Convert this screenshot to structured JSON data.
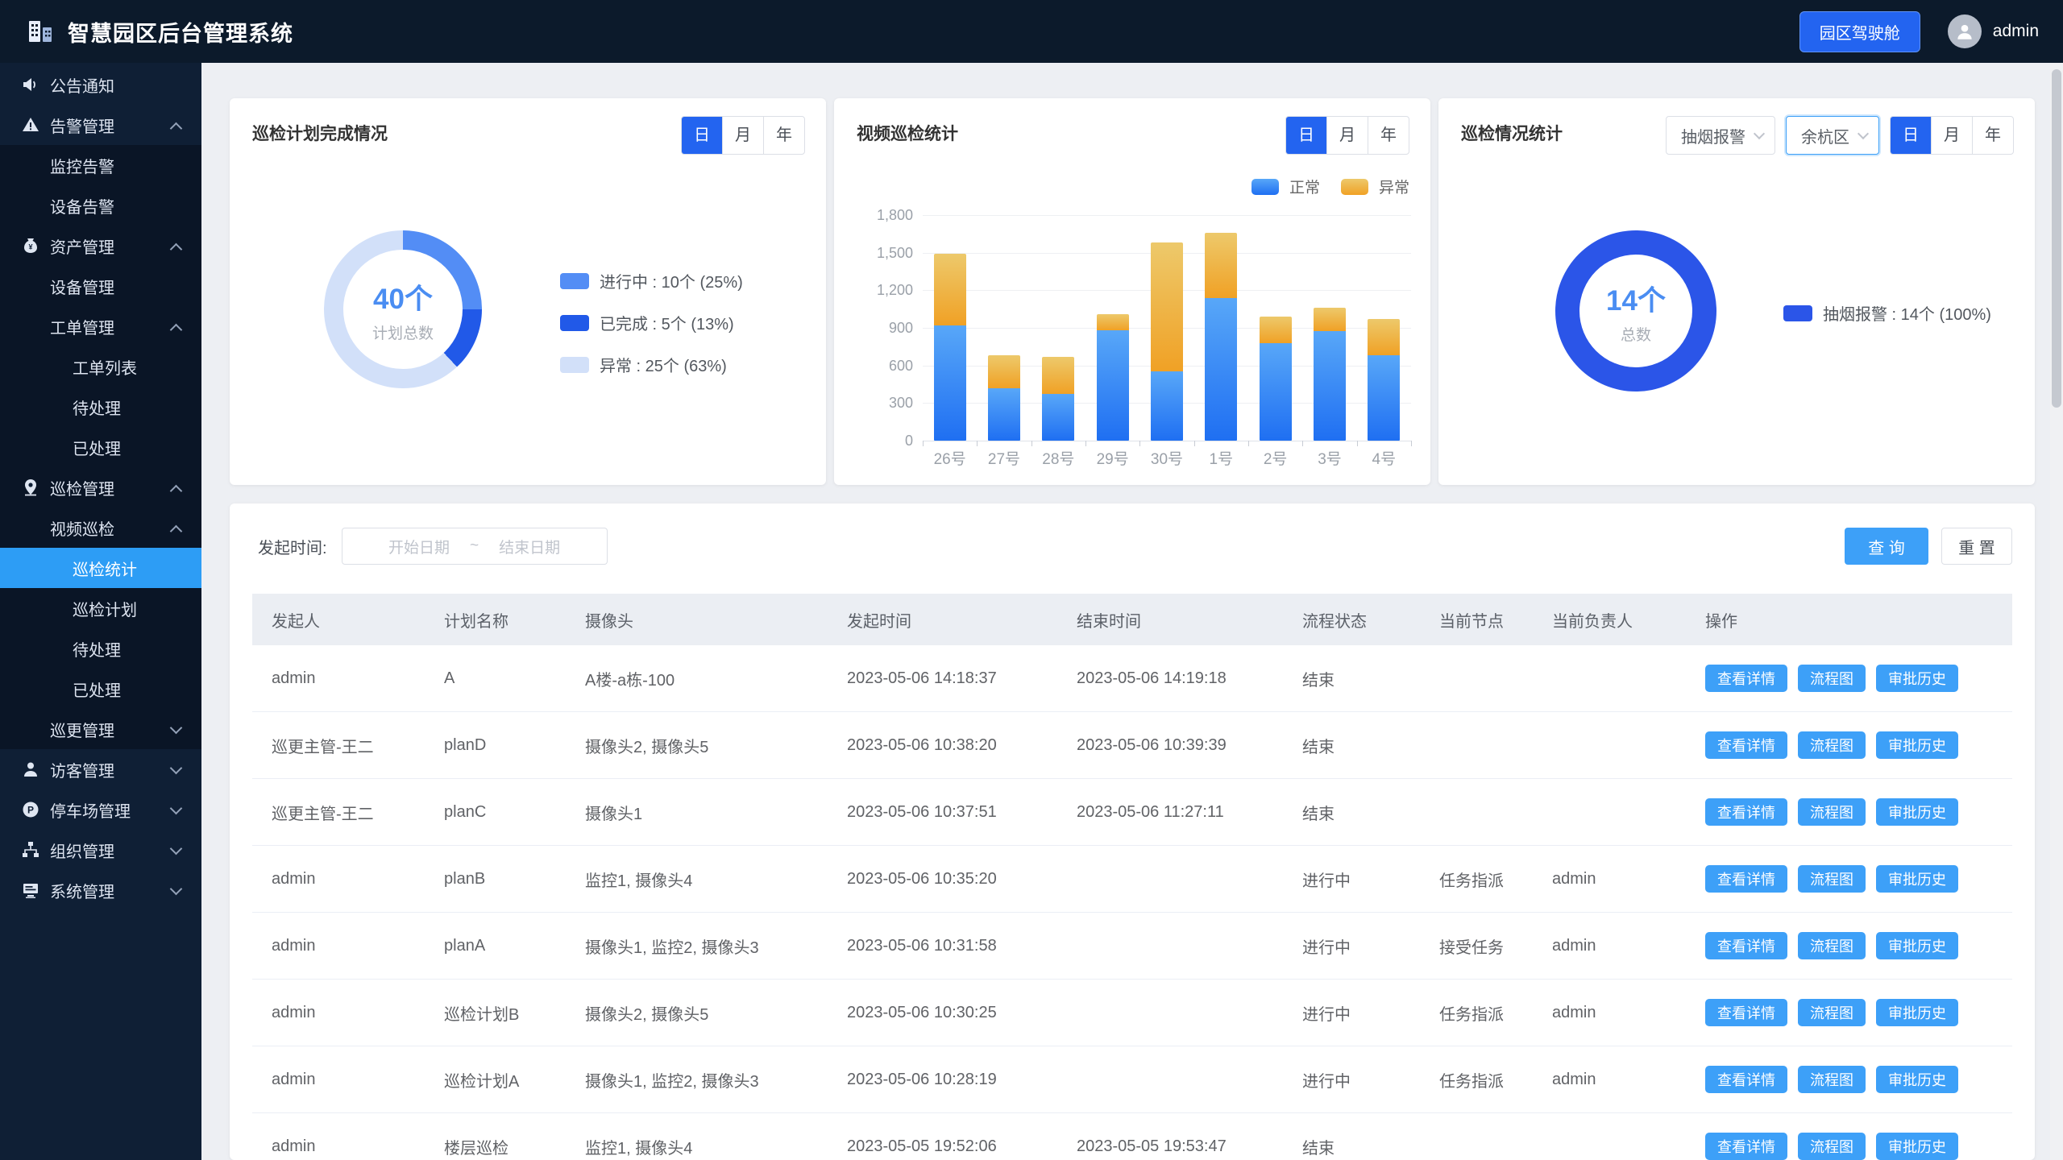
{
  "header": {
    "title": "智慧园区后台管理系统",
    "cockpit_button": "园区驾驶舱",
    "user": "admin"
  },
  "sidebar": {
    "items": [
      {
        "label": "公告通知",
        "icon": "megaphone-icon",
        "level": 1
      },
      {
        "label": "告警管理",
        "icon": "alert-icon",
        "level": 1,
        "arrow": "up"
      },
      {
        "label": "监控告警",
        "level": 2,
        "dark": true
      },
      {
        "label": "设备告警",
        "level": 2,
        "dark": true
      },
      {
        "label": "资产管理",
        "icon": "asset-icon",
        "level": 1,
        "arrow": "up",
        "dark": true
      },
      {
        "label": "设备管理",
        "level": 2,
        "dark": true
      },
      {
        "label": "工单管理",
        "level": 2,
        "arrow": "up",
        "dark": true
      },
      {
        "label": "工单列表",
        "level": 3,
        "dark": true
      },
      {
        "label": "待处理",
        "level": 3,
        "dark": true
      },
      {
        "label": "已处理",
        "level": 3,
        "dark": true
      },
      {
        "label": "巡检管理",
        "icon": "patrol-icon",
        "level": 1,
        "arrow": "up",
        "dark": true
      },
      {
        "label": "视频巡检",
        "level": 2,
        "arrow": "up",
        "dark": true
      },
      {
        "label": "巡检统计",
        "level": 3,
        "selected": true
      },
      {
        "label": "巡检计划",
        "level": 3,
        "dark": true
      },
      {
        "label": "待处理",
        "level": 3,
        "dark": true
      },
      {
        "label": "已处理",
        "level": 3,
        "dark": true
      },
      {
        "label": "巡更管理",
        "level": 2,
        "arrow": "down",
        "dark": true
      },
      {
        "label": "访客管理",
        "icon": "visitor-icon",
        "level": 1,
        "arrow": "down"
      },
      {
        "label": "停车场管理",
        "icon": "parking-icon",
        "level": 1,
        "arrow": "down"
      },
      {
        "label": "组织管理",
        "icon": "org-icon",
        "level": 1,
        "arrow": "down"
      },
      {
        "label": "系统管理",
        "icon": "system-icon",
        "level": 1,
        "arrow": "down"
      }
    ]
  },
  "period": {
    "options": [
      "日",
      "月",
      "年"
    ],
    "selected": "日"
  },
  "cards": {
    "situation": {
      "alarm_type": "抽烟报警",
      "district": "余杭区"
    }
  },
  "chart_data": [
    {
      "type": "pie",
      "title": "巡检计划完成情况",
      "center_value": "40个",
      "center_label": "计划总数",
      "slices": [
        {
          "name": "进行中",
          "label": "进行中 : 10个 (25%)",
          "value": 10,
          "sweep": 25,
          "color": "#538df5"
        },
        {
          "name": "已完成",
          "label": "已完成 : 5个 (13%)",
          "value": 5,
          "sweep": 13,
          "color": "#2159e8"
        },
        {
          "name": "异常",
          "label": "异常 : 25个 (63%)",
          "value": 25,
          "sweep": 62,
          "color": "#d2e0f9"
        }
      ],
      "legend_position": "right"
    },
    {
      "type": "bar",
      "stacked": true,
      "title": "视频巡检统计",
      "categories": [
        "26号",
        "27号",
        "28号",
        "29号",
        "30号",
        "1号",
        "2号",
        "3号",
        "4号"
      ],
      "series": [
        {
          "name": "正常",
          "color": "#1f6ff2",
          "color2": "#58a7f8",
          "values": [
            920,
            420,
            370,
            880,
            550,
            1140,
            780,
            875,
            680
          ]
        },
        {
          "name": "异常",
          "color": "#f0a125",
          "color2": "#edc96b",
          "values": [
            570,
            260,
            300,
            130,
            1030,
            520,
            210,
            185,
            290
          ]
        }
      ],
      "ylim": [
        0,
        1800
      ],
      "yticks": [
        {
          "v": 0,
          "label": "0"
        },
        {
          "v": 300,
          "label": "300"
        },
        {
          "v": 600,
          "label": "600"
        },
        {
          "v": 900,
          "label": "900"
        },
        {
          "v": 1200,
          "label": "1,200"
        },
        {
          "v": 1500,
          "label": "1,500"
        },
        {
          "v": 1800,
          "label": "1,800"
        }
      ],
      "grid": true,
      "legend_position": "top-right"
    },
    {
      "type": "pie",
      "title": "巡检情况统计",
      "center_value": "14个",
      "center_label": "总数",
      "slices": [
        {
          "name": "抽烟报警",
          "label": "抽烟报警 : 14个 (100%)",
          "value": 14,
          "sweep": 100,
          "color": "#2b55e8"
        }
      ],
      "legend_position": "right"
    }
  ],
  "filters": {
    "time_label": "发起时间:",
    "start_placeholder": "开始日期",
    "separator": "~",
    "end_placeholder": "结束日期",
    "search_label": "查 询",
    "reset_label": "重 置"
  },
  "table": {
    "headers": [
      "发起人",
      "计划名称",
      "摄像头",
      "发起时间",
      "结束时间",
      "流程状态",
      "当前节点",
      "当前负责人",
      "操作"
    ],
    "row_actions": [
      "查看详情",
      "流程图",
      "审批历史"
    ],
    "rows": [
      [
        "admin",
        "A",
        "A楼-a栋-100",
        "2023-05-06 14:18:37",
        "2023-05-06 14:19:18",
        "结束",
        "",
        ""
      ],
      [
        "巡更主管-王二",
        "planD",
        "摄像头2, 摄像头5",
        "2023-05-06 10:38:20",
        "2023-05-06 10:39:39",
        "结束",
        "",
        ""
      ],
      [
        "巡更主管-王二",
        "planC",
        "摄像头1",
        "2023-05-06 10:37:51",
        "2023-05-06 11:27:11",
        "结束",
        "",
        ""
      ],
      [
        "admin",
        "planB",
        "监控1, 摄像头4",
        "2023-05-06 10:35:20",
        "",
        "进行中",
        "任务指派",
        "admin"
      ],
      [
        "admin",
        "planA",
        "摄像头1, 监控2, 摄像头3",
        "2023-05-06 10:31:58",
        "",
        "进行中",
        "接受任务",
        "admin"
      ],
      [
        "admin",
        "巡检计划B",
        "摄像头2, 摄像头5",
        "2023-05-06 10:30:25",
        "",
        "进行中",
        "任务指派",
        "admin"
      ],
      [
        "admin",
        "巡检计划A",
        "摄像头1, 监控2, 摄像头3",
        "2023-05-06 10:28:19",
        "",
        "进行中",
        "任务指派",
        "admin"
      ],
      [
        "admin",
        "楼层巡检",
        "监控1, 摄像头4",
        "2023-05-05 19:52:06",
        "2023-05-05 19:53:47",
        "结束",
        "",
        ""
      ]
    ]
  },
  "colors": {
    "header_bg": "#0c1a2b",
    "sidebar_bg": "#0f1f35",
    "sidebar_selected": "#2d9df5",
    "primary_button": "#3da0f8",
    "accent_toggle": "#2364f0",
    "page_bg": "#edeff3",
    "normal_series": "#1f6ff2",
    "abnormal_series": "#f0a125"
  }
}
